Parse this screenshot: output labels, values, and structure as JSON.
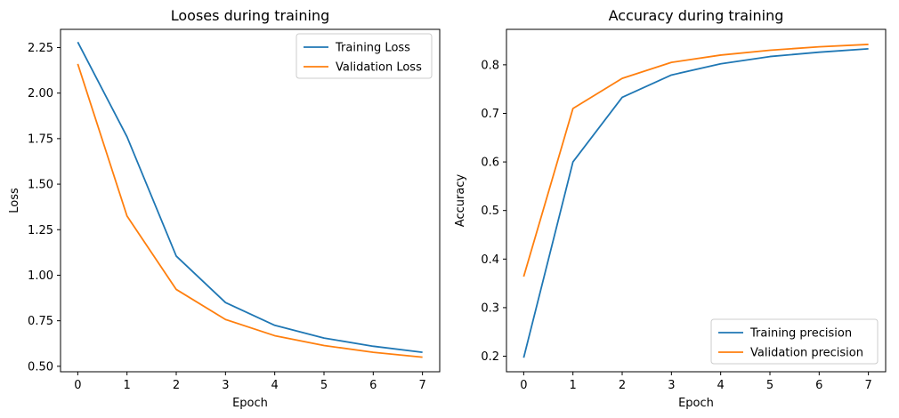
{
  "chart_data": [
    {
      "type": "line",
      "title": "Looses during training",
      "xlabel": "Epoch",
      "ylabel": "Loss",
      "x": [
        0,
        1,
        2,
        3,
        4,
        5,
        6,
        7
      ],
      "xticks": [
        "0",
        "1",
        "2",
        "3",
        "4",
        "5",
        "6",
        "7"
      ],
      "yticks": [
        0.5,
        0.75,
        1.0,
        1.25,
        1.5,
        1.75,
        2.0,
        2.25
      ],
      "ytick_labels": [
        "0.50",
        "0.75",
        "1.00",
        "1.25",
        "1.50",
        "1.75",
        "2.00",
        "2.25"
      ],
      "xlim": [
        -0.35,
        7.35
      ],
      "ylim": [
        0.47,
        2.35
      ],
      "legend_position": "top-right",
      "series": [
        {
          "name": "Training Loss",
          "color": "#1f77b4",
          "values": [
            2.28,
            1.76,
            1.105,
            0.85,
            0.725,
            0.655,
            0.61,
            0.577
          ]
        },
        {
          "name": "Validation Loss",
          "color": "#ff7f0e",
          "values": [
            2.16,
            1.325,
            0.922,
            0.757,
            0.668,
            0.614,
            0.577,
            0.55
          ]
        }
      ]
    },
    {
      "type": "line",
      "title": "Accuracy during training",
      "xlabel": "Epoch",
      "ylabel": "Accuracy",
      "x": [
        0,
        1,
        2,
        3,
        4,
        5,
        6,
        7
      ],
      "xticks": [
        "0",
        "1",
        "2",
        "3",
        "4",
        "5",
        "6",
        "7"
      ],
      "yticks": [
        0.2,
        0.3,
        0.4,
        0.5,
        0.6,
        0.7,
        0.8
      ],
      "ytick_labels": [
        "0.2",
        "0.3",
        "0.4",
        "0.5",
        "0.6",
        "0.7",
        "0.8"
      ],
      "xlim": [
        -0.35,
        7.35
      ],
      "ylim": [
        0.168,
        0.873
      ],
      "legend_position": "bottom-right",
      "series": [
        {
          "name": "Training precision",
          "color": "#1f77b4",
          "values": [
            0.197,
            0.6,
            0.733,
            0.779,
            0.802,
            0.817,
            0.826,
            0.833
          ]
        },
        {
          "name": "Validation precision",
          "color": "#ff7f0e",
          "values": [
            0.364,
            0.71,
            0.772,
            0.805,
            0.82,
            0.83,
            0.837,
            0.842
          ]
        }
      ]
    }
  ]
}
